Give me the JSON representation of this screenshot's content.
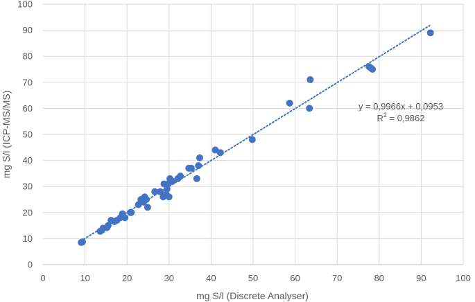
{
  "chart_data": {
    "type": "scatter",
    "title": "",
    "xlabel": "mg S/l (Discrete Analyser)",
    "ylabel": "mg S/l (ICP-MS/MS)",
    "xlim": [
      0,
      100
    ],
    "ylim": [
      0,
      100
    ],
    "x_ticks": [
      "0",
      "10",
      "20",
      "30",
      "40",
      "50",
      "60",
      "70",
      "80",
      "90",
      "100"
    ],
    "y_ticks": [
      "0",
      "10",
      "20",
      "30",
      "40",
      "50",
      "60",
      "70",
      "80",
      "90",
      "100"
    ],
    "grid": true,
    "marker_color": "#4472C4",
    "trendline": {
      "style": "dotted",
      "color": "#4472C4",
      "slope": 0.9966,
      "intercept": 0.0953,
      "x_range": [
        9,
        92
      ],
      "equation_label": "y = 0,9966x + 0,0953",
      "r2_label_prefix": "R",
      "r2_label_exp": "2",
      "r2_label_suffix": " = 0,9862"
    },
    "points": [
      {
        "x": 9.1,
        "y": 8.5
      },
      {
        "x": 9.4,
        "y": 8.7
      },
      {
        "x": 13.6,
        "y": 12.8
      },
      {
        "x": 14.0,
        "y": 13.2
      },
      {
        "x": 14.3,
        "y": 14.0
      },
      {
        "x": 15.2,
        "y": 14.2
      },
      {
        "x": 15.5,
        "y": 15.0
      },
      {
        "x": 16.2,
        "y": 17.0
      },
      {
        "x": 17.0,
        "y": 16.5
      },
      {
        "x": 17.6,
        "y": 17.0
      },
      {
        "x": 18.4,
        "y": 18.0
      },
      {
        "x": 18.9,
        "y": 19.5
      },
      {
        "x": 19.5,
        "y": 18.0
      },
      {
        "x": 20.8,
        "y": 20.0
      },
      {
        "x": 21.0,
        "y": 20.0
      },
      {
        "x": 22.7,
        "y": 23.0
      },
      {
        "x": 23.3,
        "y": 25.0
      },
      {
        "x": 23.9,
        "y": 24.0
      },
      {
        "x": 24.2,
        "y": 26.0
      },
      {
        "x": 24.6,
        "y": 25.0
      },
      {
        "x": 24.9,
        "y": 22.0
      },
      {
        "x": 26.6,
        "y": 28.0
      },
      {
        "x": 27.9,
        "y": 28.0
      },
      {
        "x": 28.6,
        "y": 26.0
      },
      {
        "x": 28.8,
        "y": 31.0
      },
      {
        "x": 29.3,
        "y": 27.0
      },
      {
        "x": 29.5,
        "y": 29.0
      },
      {
        "x": 29.8,
        "y": 31.0
      },
      {
        "x": 30.0,
        "y": 26.0
      },
      {
        "x": 30.2,
        "y": 33.0
      },
      {
        "x": 30.8,
        "y": 32.0
      },
      {
        "x": 32.1,
        "y": 33.0
      },
      {
        "x": 32.7,
        "y": 34.0
      },
      {
        "x": 34.7,
        "y": 37.0
      },
      {
        "x": 35.3,
        "y": 37.0
      },
      {
        "x": 36.6,
        "y": 33.0
      },
      {
        "x": 37.0,
        "y": 38.0
      },
      {
        "x": 37.3,
        "y": 41.0
      },
      {
        "x": 41.0,
        "y": 44.0
      },
      {
        "x": 42.2,
        "y": 43.0
      },
      {
        "x": 49.8,
        "y": 48.0
      },
      {
        "x": 58.7,
        "y": 62.0
      },
      {
        "x": 63.4,
        "y": 60.0
      },
      {
        "x": 63.6,
        "y": 71.0
      },
      {
        "x": 77.6,
        "y": 76.0
      },
      {
        "x": 78.0,
        "y": 75.5
      },
      {
        "x": 78.4,
        "y": 75.0
      },
      {
        "x": 92.2,
        "y": 89.0
      }
    ]
  }
}
